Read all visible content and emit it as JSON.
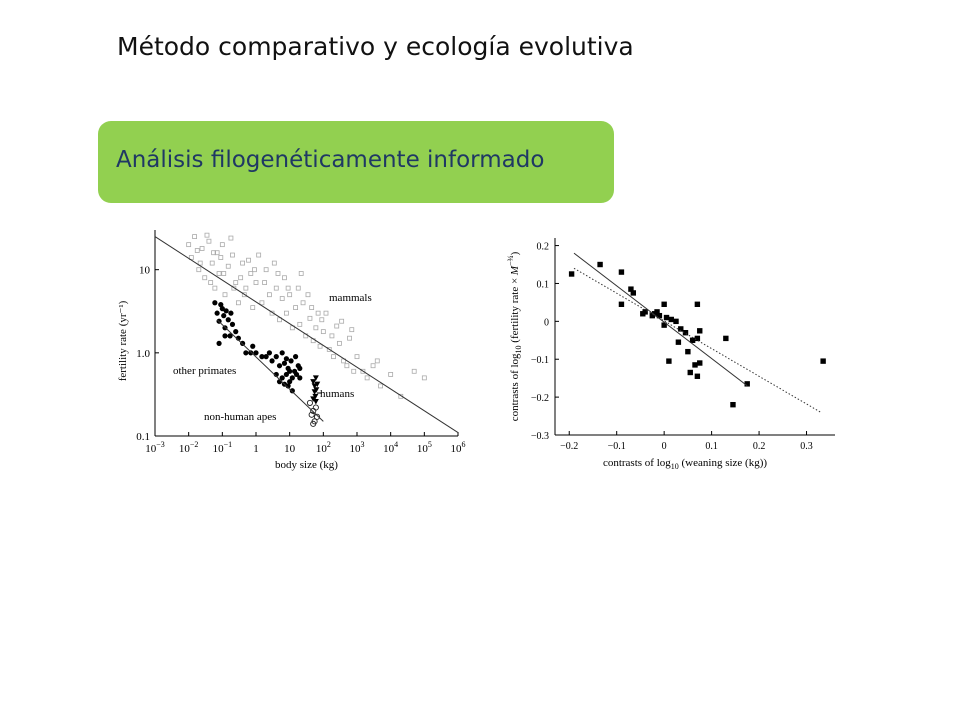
{
  "slide": {
    "title": "Método comparativo y ecología evolutiva",
    "section_label": "Análisis filogenéticamente informado",
    "colors": {
      "banner": "#92d050",
      "banner_text": "#1f3864"
    }
  },
  "chart_data": [
    {
      "type": "scatter",
      "xlabel": "body size (kg)",
      "ylabel": "fertility rate (yr⁻¹)",
      "xscale": "log",
      "yscale": "log",
      "xlim": [
        0.001,
        1000000
      ],
      "ylim": [
        0.1,
        30
      ],
      "x_ticks": [
        {
          "base": "10",
          "exp": "−3"
        },
        {
          "base": "10",
          "exp": "−2"
        },
        {
          "base": "10",
          "exp": "−1"
        },
        {
          "base": "1",
          "exp": ""
        },
        {
          "base": "10",
          "exp": ""
        },
        {
          "base": "10",
          "exp": "2"
        },
        {
          "base": "10",
          "exp": "3"
        },
        {
          "base": "10",
          "exp": "4"
        },
        {
          "base": "10",
          "exp": "5"
        },
        {
          "base": "10",
          "exp": "6"
        }
      ],
      "y_ticks": [
        "0.1",
        "1.0",
        "10"
      ],
      "annotations": [
        "mammals",
        "other primates",
        "humans",
        "non-human apes"
      ],
      "series": [
        {
          "name": "mammals",
          "marker": "open-square",
          "points": [
            [
              0.01,
              20
            ],
            [
              0.012,
              14
            ],
            [
              0.015,
              25
            ],
            [
              0.02,
              10
            ],
            [
              0.025,
              18
            ],
            [
              0.03,
              8
            ],
            [
              0.04,
              22
            ],
            [
              0.05,
              12
            ],
            [
              0.06,
              6
            ],
            [
              0.07,
              16
            ],
            [
              0.08,
              9
            ],
            [
              0.1,
              20
            ],
            [
              0.12,
              5
            ],
            [
              0.15,
              11
            ],
            [
              0.2,
              15
            ],
            [
              0.25,
              7
            ],
            [
              0.3,
              4
            ],
            [
              0.4,
              12
            ],
            [
              0.5,
              6
            ],
            [
              0.7,
              9
            ],
            [
              0.8,
              3.5
            ],
            [
              1,
              7
            ],
            [
              1.5,
              4
            ],
            [
              2,
              10
            ],
            [
              2.5,
              5
            ],
            [
              3,
              3
            ],
            [
              4,
              6
            ],
            [
              5,
              2.5
            ],
            [
              6,
              4.5
            ],
            [
              8,
              3
            ],
            [
              10,
              5
            ],
            [
              12,
              2
            ],
            [
              15,
              3.5
            ],
            [
              20,
              2.2
            ],
            [
              25,
              4
            ],
            [
              30,
              1.6
            ],
            [
              40,
              2.6
            ],
            [
              50,
              1.4
            ],
            [
              60,
              2
            ],
            [
              80,
              1.2
            ],
            [
              100,
              1.8
            ],
            [
              150,
              1.1
            ],
            [
              200,
              0.9
            ],
            [
              300,
              1.3
            ],
            [
              400,
              0.8
            ],
            [
              500,
              0.7
            ],
            [
              800,
              0.6
            ],
            [
              1000,
              0.9
            ],
            [
              2000,
              0.5
            ],
            [
              3000,
              0.7
            ],
            [
              5000,
              0.4
            ],
            [
              10000,
              0.55
            ],
            [
              20000,
              0.3
            ],
            [
              50000,
              0.6
            ],
            [
              100000,
              0.5
            ],
            [
              0.018,
              17
            ],
            [
              0.035,
              26
            ],
            [
              0.045,
              7
            ],
            [
              0.09,
              14
            ],
            [
              0.18,
              24
            ],
            [
              0.35,
              8
            ],
            [
              0.6,
              13
            ],
            [
              1.2,
              15
            ],
            [
              3.5,
              12
            ],
            [
              7,
              8
            ],
            [
              18,
              6
            ],
            [
              35,
              5
            ],
            [
              70,
              3
            ],
            [
              120,
              3
            ],
            [
              250,
              2.1
            ],
            [
              600,
              1.5
            ],
            [
              1500,
              0.6
            ],
            [
              4000,
              0.8
            ],
            [
              0.022,
              12
            ],
            [
              0.055,
              16
            ],
            [
              0.11,
              9
            ],
            [
              0.22,
              6
            ],
            [
              0.45,
              5
            ],
            [
              0.9,
              10
            ],
            [
              1.8,
              7
            ],
            [
              4.5,
              9
            ],
            [
              9,
              6
            ],
            [
              22,
              9
            ],
            [
              45,
              3.5
            ],
            [
              90,
              2.5
            ],
            [
              180,
              1.6
            ],
            [
              350,
              2.4
            ],
            [
              700,
              1.9
            ]
          ]
        },
        {
          "name": "other primates",
          "marker": "filled-circle",
          "points": [
            [
              0.06,
              4
            ],
            [
              0.07,
              3
            ],
            [
              0.08,
              2.4
            ],
            [
              0.09,
              3.8
            ],
            [
              0.1,
              3.4
            ],
            [
              0.11,
              2.8
            ],
            [
              0.12,
              2
            ],
            [
              0.13,
              3.2
            ],
            [
              0.15,
              2.5
            ],
            [
              0.17,
              1.6
            ],
            [
              0.18,
              3
            ],
            [
              0.2,
              2.2
            ],
            [
              0.25,
              1.8
            ],
            [
              0.3,
              1.5
            ],
            [
              0.08,
              1.3
            ],
            [
              0.12,
              1.6
            ],
            [
              0.4,
              1.3
            ],
            [
              0.5,
              1
            ],
            [
              0.7,
              1
            ],
            [
              0.8,
              1.2
            ],
            [
              1,
              1
            ],
            [
              1.5,
              0.9
            ],
            [
              2,
              0.9
            ],
            [
              2.5,
              1
            ],
            [
              3,
              0.8
            ],
            [
              4,
              0.9
            ],
            [
              4,
              0.55
            ],
            [
              5,
              0.7
            ],
            [
              5,
              0.45
            ],
            [
              6,
              1
            ],
            [
              6,
              0.5
            ],
            [
              7,
              0.75
            ],
            [
              7,
              0.42
            ],
            [
              8,
              0.85
            ],
            [
              8,
              0.55
            ],
            [
              9,
              0.65
            ],
            [
              9,
              0.4
            ],
            [
              10,
              0.6
            ],
            [
              10,
              0.45
            ],
            [
              11,
              0.8
            ],
            [
              12,
              0.5
            ],
            [
              12,
              0.35
            ],
            [
              14,
              0.6
            ],
            [
              15,
              0.9
            ],
            [
              16,
              0.55
            ],
            [
              18,
              0.7
            ],
            [
              20,
              0.5
            ],
            [
              20,
              0.65
            ]
          ]
        },
        {
          "name": "humans",
          "marker": "filled-triangle",
          "points": [
            [
              50,
              0.45
            ],
            [
              55,
              0.4
            ],
            [
              60,
              0.5
            ],
            [
              55,
              0.34
            ],
            [
              58,
              0.3
            ],
            [
              62,
              0.36
            ],
            [
              66,
              0.42
            ],
            [
              50,
              0.28
            ],
            [
              60,
              0.26
            ]
          ]
        },
        {
          "name": "non-human apes",
          "marker": "open-circle",
          "points": [
            [
              40,
              0.25
            ],
            [
              45,
              0.18
            ],
            [
              50,
              0.2
            ],
            [
              55,
              0.15
            ],
            [
              60,
              0.22
            ],
            [
              65,
              0.17
            ],
            [
              50,
              0.14
            ]
          ]
        }
      ],
      "lines": [
        {
          "name": "mammals",
          "style": "solid",
          "x": [
            0.001,
            1000000
          ],
          "y": [
            25,
            0.11
          ]
        },
        {
          "name": "primates",
          "style": "solid",
          "x": [
            0.07,
            100
          ],
          "y": [
            2.5,
            0.15
          ]
        }
      ]
    },
    {
      "type": "scatter",
      "xlabel_parts": [
        "contrasts of log",
        "10",
        " (weaning size (kg))"
      ],
      "ylabel_parts": [
        "contrasts of log",
        "10",
        " (fertility rate × ",
        "M",
        "−¾",
        ")"
      ],
      "xlim": [
        -0.23,
        0.36
      ],
      "ylim": [
        -0.3,
        0.22
      ],
      "x_ticks": [
        "−0.2",
        "−0.1",
        "0",
        "0.1",
        "0.2",
        "0.3"
      ],
      "y_ticks": [
        "0.2",
        "0.1",
        "0",
        "−0.1",
        "−0.2",
        "−0.3"
      ],
      "series": [
        {
          "name": "",
          "marker": "filled-square",
          "points": [
            [
              -0.195,
              0.125
            ],
            [
              -0.135,
              0.15
            ],
            [
              -0.09,
              0.13
            ],
            [
              -0.09,
              0.045
            ],
            [
              -0.07,
              0.085
            ],
            [
              -0.065,
              0.075
            ],
            [
              -0.045,
              0.02
            ],
            [
              -0.04,
              0.025
            ],
            [
              -0.025,
              0.015
            ],
            [
              -0.02,
              0.02
            ],
            [
              -0.015,
              0.025
            ],
            [
              -0.01,
              0.015
            ],
            [
              0.0,
              0.045
            ],
            [
              0.0,
              -0.01
            ],
            [
              0.005,
              0.01
            ],
            [
              0.01,
              -0.105
            ],
            [
              0.015,
              0.005
            ],
            [
              0.025,
              0.0
            ],
            [
              0.03,
              -0.055
            ],
            [
              0.035,
              -0.02
            ],
            [
              0.045,
              -0.03
            ],
            [
              0.05,
              -0.08
            ],
            [
              0.055,
              -0.135
            ],
            [
              0.06,
              -0.05
            ],
            [
              0.065,
              -0.115
            ],
            [
              0.07,
              -0.145
            ],
            [
              0.07,
              0.045
            ],
            [
              0.07,
              -0.045
            ],
            [
              0.075,
              -0.11
            ],
            [
              0.075,
              -0.025
            ],
            [
              0.13,
              -0.045
            ],
            [
              0.145,
              -0.22
            ],
            [
              0.175,
              -0.165
            ],
            [
              0.335,
              -0.105
            ]
          ]
        }
      ],
      "lines": [
        {
          "style": "solid",
          "x": [
            -0.19,
            0.175
          ],
          "y": [
            0.18,
            -0.17
          ]
        },
        {
          "style": "dotted",
          "x": [
            -0.19,
            0.33
          ],
          "y": [
            0.14,
            -0.24
          ]
        }
      ]
    }
  ]
}
